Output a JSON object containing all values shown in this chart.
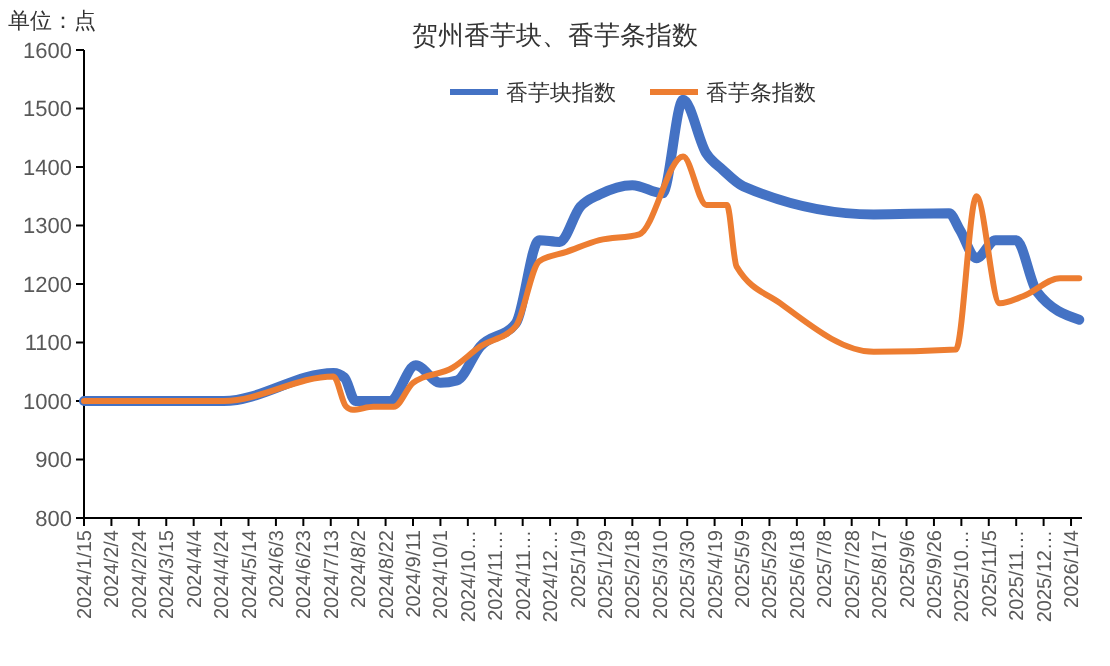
{
  "chart_data": {
    "type": "line",
    "title": "贺州香芋块、香芋条指数",
    "annotations": [
      "单位：点"
    ],
    "legend": "top",
    "grid": false,
    "marker": "none",
    "line_style": "solid",
    "xlim": [
      "2024-01-15",
      "2026-01-12"
    ],
    "xticks": [
      {
        "value": "2024-01-15",
        "label": "2024/1/15"
      },
      {
        "value": "2024-02-04",
        "label": "2024/2/4"
      },
      {
        "value": "2024-02-24",
        "label": "2024/2/24"
      },
      {
        "value": "2024-03-15",
        "label": "2024/3/15"
      },
      {
        "value": "2024-04-04",
        "label": "2024/4/4"
      },
      {
        "value": "2024-04-24",
        "label": "2024/4/24"
      },
      {
        "value": "2024-05-14",
        "label": "2024/5/14"
      },
      {
        "value": "2024-06-03",
        "label": "2024/6/3"
      },
      {
        "value": "2024-06-23",
        "label": "2024/6/23"
      },
      {
        "value": "2024-07-13",
        "label": "2024/7/13"
      },
      {
        "value": "2024-08-02",
        "label": "2024/8/2"
      },
      {
        "value": "2024-08-22",
        "label": "2024/8/22"
      },
      {
        "value": "2024-09-11",
        "label": "2024/9/11"
      },
      {
        "value": "2024-10-01",
        "label": "2024/10/1"
      },
      {
        "value": "2024-10-21",
        "label": "2024/10…"
      },
      {
        "value": "2024-11-10",
        "label": "2024/11…"
      },
      {
        "value": "2024-11-30",
        "label": "2024/11…"
      },
      {
        "value": "2024-12-20",
        "label": "2024/12…"
      },
      {
        "value": "2025-01-09",
        "label": "2025/1/9"
      },
      {
        "value": "2025-01-29",
        "label": "2025/1/29"
      },
      {
        "value": "2025-02-18",
        "label": "2025/2/18"
      },
      {
        "value": "2025-03-10",
        "label": "2025/3/10"
      },
      {
        "value": "2025-03-30",
        "label": "2025/3/30"
      },
      {
        "value": "2025-04-19",
        "label": "2025/4/19"
      },
      {
        "value": "2025-05-09",
        "label": "2025/5/9"
      },
      {
        "value": "2025-05-29",
        "label": "2025/5/29"
      },
      {
        "value": "2025-06-18",
        "label": "2025/6/18"
      },
      {
        "value": "2025-07-08",
        "label": "2025/7/8"
      },
      {
        "value": "2025-07-28",
        "label": "2025/7/28"
      },
      {
        "value": "2025-08-17",
        "label": "2025/8/17"
      },
      {
        "value": "2025-09-06",
        "label": "2025/9/6"
      },
      {
        "value": "2025-09-26",
        "label": "2025/9/26"
      },
      {
        "value": "2025-10-16",
        "label": "2025/10…"
      },
      {
        "value": "2025-11-05",
        "label": "2025/11/5"
      },
      {
        "value": "2025-11-25",
        "label": "2025/11…"
      },
      {
        "value": "2025-12-15",
        "label": "2025/12…"
      },
      {
        "value": "2026-01-04",
        "label": "2026/1/4"
      }
    ],
    "ylim": [
      800,
      1600
    ],
    "yticks": [
      800,
      900,
      1000,
      1100,
      1200,
      1300,
      1400,
      1500,
      1600
    ],
    "series": [
      {
        "name": "香芋块指数",
        "color": "#4472c4",
        "x": [
          "2024-01-15",
          "2024-04-26",
          "2024-07-15",
          "2024-07-23",
          "2024-07-31",
          "2024-08-25",
          "2024-09-13",
          "2024-10-01",
          "2024-10-13",
          "2024-10-30",
          "2024-11-25",
          "2024-12-12",
          "2024-12-27",
          "2025-01-11",
          "2025-01-25",
          "2025-02-18",
          "2025-03-12",
          "2025-03-27",
          "2025-04-13",
          "2025-04-25",
          "2025-05-10",
          "2025-08-13",
          "2025-10-07",
          "2025-10-15",
          "2025-10-27",
          "2025-11-10",
          "2025-11-25",
          "2025-12-10",
          "2026-01-10"
        ],
        "values": [
          1000,
          1000,
          1048,
          1040,
          1000,
          1000,
          1061,
          1031,
          1035,
          1093,
          1133,
          1275,
          1272,
          1332,
          1353,
          1369,
          1355,
          1515,
          1423,
          1395,
          1367,
          1319,
          1321,
          1292,
          1244,
          1275,
          1275,
          1187,
          1139
        ]
      },
      {
        "name": "香芋条指数",
        "color": "#ed7d31",
        "x": [
          "2024-01-15",
          "2024-04-26",
          "2024-07-15",
          "2024-07-24",
          "2024-07-29",
          "2024-08-13",
          "2024-08-28",
          "2024-09-11",
          "2024-10-10",
          "2024-10-30",
          "2024-11-25",
          "2024-12-12",
          "2025-01-01",
          "2025-01-25",
          "2025-02-23",
          "2025-03-27",
          "2025-04-13",
          "2025-04-28",
          "2025-05-05",
          "2025-06-06",
          "2025-08-13",
          "2025-10-12",
          "2025-10-27",
          "2025-11-13",
          "2025-11-30",
          "2025-12-27",
          "2026-01-10"
        ],
        "values": [
          1000,
          1000,
          1042,
          991,
          985,
          990,
          990,
          1031,
          1057,
          1093,
          1128,
          1239,
          1255,
          1275,
          1285,
          1418,
          1335,
          1335,
          1230,
          1167,
          1084,
          1088,
          1350,
          1167,
          1179,
          1210,
          1210
        ]
      }
    ]
  }
}
